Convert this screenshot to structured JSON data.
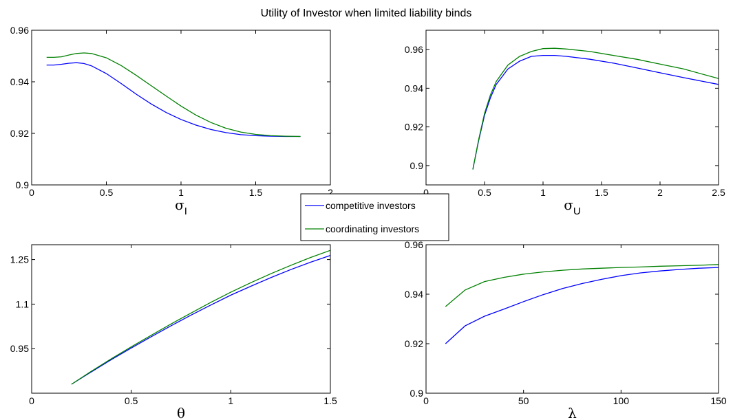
{
  "figure": {
    "title": "Utility of Investor when limited liability binds"
  },
  "legend": {
    "entries": [
      {
        "label": "competitive investors",
        "color": "#0000ff"
      },
      {
        "label": "coordinating investors",
        "color": "#008000"
      }
    ],
    "placement": "center"
  },
  "chart_data": [
    {
      "type": "line",
      "xlabel": "σ",
      "xlabel_sub": "I",
      "xlim": [
        0,
        2
      ],
      "ylim": [
        0.9,
        0.96
      ],
      "xticks": [
        0,
        0.5,
        1,
        1.5,
        2
      ],
      "xtick_labels": [
        "0",
        "0.5",
        "1",
        "1.5",
        "2"
      ],
      "yticks": [
        0.9,
        0.92,
        0.94,
        0.96
      ],
      "ytick_labels": [
        "0.9",
        "0.92",
        "0.94",
        "0.96"
      ],
      "grid": false,
      "series": [
        {
          "color": "#0000ff",
          "x": [
            0.1,
            0.15,
            0.2,
            0.25,
            0.3,
            0.35,
            0.4,
            0.5,
            0.6,
            0.7,
            0.8,
            0.9,
            1.0,
            1.1,
            1.2,
            1.3,
            1.4,
            1.5,
            1.6,
            1.7,
            1.8
          ],
          "y": [
            0.9465,
            0.9465,
            0.9468,
            0.9472,
            0.9474,
            0.9471,
            0.9462,
            0.9432,
            0.9393,
            0.9352,
            0.9314,
            0.9281,
            0.9254,
            0.9232,
            0.9215,
            0.9203,
            0.9195,
            0.9191,
            0.9189,
            0.9188,
            0.9188
          ]
        },
        {
          "color": "#008000",
          "x": [
            0.1,
            0.15,
            0.2,
            0.25,
            0.3,
            0.35,
            0.4,
            0.5,
            0.6,
            0.7,
            0.8,
            0.9,
            1.0,
            1.1,
            1.2,
            1.3,
            1.4,
            1.5,
            1.6,
            1.7,
            1.8
          ],
          "y": [
            0.9495,
            0.9495,
            0.9497,
            0.9504,
            0.951,
            0.9512,
            0.951,
            0.9493,
            0.9463,
            0.9425,
            0.9385,
            0.9345,
            0.9306,
            0.9271,
            0.9242,
            0.922,
            0.9205,
            0.9196,
            0.9191,
            0.9189,
            0.9188
          ]
        }
      ]
    },
    {
      "type": "line",
      "xlabel": "σ",
      "xlabel_sub": "U",
      "xlim": [
        0,
        2.5
      ],
      "ylim": [
        0.89,
        0.97
      ],
      "xticks": [
        0,
        0.5,
        1,
        1.5,
        2,
        2.5
      ],
      "xtick_labels": [
        "0",
        "0.5",
        "1",
        "1.5",
        "2",
        "2.5"
      ],
      "yticks": [
        0.9,
        0.92,
        0.94,
        0.96
      ],
      "ytick_labels": [
        "0.9",
        "0.92",
        "0.94",
        "0.96"
      ],
      "grid": false,
      "series": [
        {
          "color": "#0000ff",
          "x": [
            0.4,
            0.45,
            0.5,
            0.55,
            0.6,
            0.7,
            0.8,
            0.9,
            1.0,
            1.1,
            1.2,
            1.4,
            1.6,
            1.8,
            2.0,
            2.2,
            2.5
          ],
          "y": [
            0.898,
            0.913,
            0.926,
            0.935,
            0.942,
            0.95,
            0.954,
            0.9565,
            0.957,
            0.957,
            0.9565,
            0.955,
            0.953,
            0.9505,
            0.948,
            0.9455,
            0.942
          ]
        },
        {
          "color": "#008000",
          "x": [
            0.4,
            0.45,
            0.5,
            0.55,
            0.6,
            0.7,
            0.8,
            0.9,
            1.0,
            1.1,
            1.2,
            1.4,
            1.6,
            1.8,
            2.0,
            2.2,
            2.5
          ],
          "y": [
            0.898,
            0.9135,
            0.927,
            0.9365,
            0.9435,
            0.952,
            0.9565,
            0.959,
            0.9605,
            0.9607,
            0.9603,
            0.959,
            0.957,
            0.955,
            0.9525,
            0.95,
            0.945
          ]
        }
      ]
    },
    {
      "type": "line",
      "xlabel": "θ",
      "xlabel_sub": "",
      "xlim": [
        0,
        1.5
      ],
      "ylim": [
        0.8,
        1.3
      ],
      "xticks": [
        0,
        0.5,
        1,
        1.5
      ],
      "xtick_labels": [
        "0",
        "0.5",
        "1",
        "1.5"
      ],
      "yticks": [
        0.95,
        1.1,
        1.25
      ],
      "ytick_labels": [
        "0.95",
        "1.1",
        "1.25"
      ],
      "grid": false,
      "series": [
        {
          "color": "#0000ff",
          "x": [
            0.2,
            0.3,
            0.4,
            0.5,
            0.6,
            0.7,
            0.8,
            0.9,
            1.0,
            1.1,
            1.2,
            1.3,
            1.4,
            1.5
          ],
          "y": [
            0.83,
            0.872,
            0.913,
            0.952,
            0.99,
            1.027,
            1.063,
            1.097,
            1.13,
            1.16,
            1.189,
            1.216,
            1.241,
            1.264
          ]
        },
        {
          "color": "#008000",
          "x": [
            0.2,
            0.3,
            0.4,
            0.5,
            0.6,
            0.7,
            0.8,
            0.9,
            1.0,
            1.1,
            1.2,
            1.3,
            1.4,
            1.5
          ],
          "y": [
            0.83,
            0.874,
            0.916,
            0.956,
            0.995,
            1.033,
            1.07,
            1.106,
            1.14,
            1.172,
            1.202,
            1.23,
            1.257,
            1.281
          ]
        }
      ]
    },
    {
      "type": "line",
      "xlabel": "λ",
      "xlabel_sub": "",
      "xlim": [
        0,
        150
      ],
      "ylim": [
        0.9,
        0.96
      ],
      "xticks": [
        0,
        50,
        100,
        150
      ],
      "xtick_labels": [
        "0",
        "50",
        "100",
        "150"
      ],
      "yticks": [
        0.9,
        0.92,
        0.94,
        0.96
      ],
      "ytick_labels": [
        "0.9",
        "0.92",
        "0.94",
        "0.96"
      ],
      "grid": false,
      "series": [
        {
          "color": "#0000ff",
          "x": [
            10,
            20,
            30,
            40,
            50,
            60,
            70,
            80,
            90,
            100,
            110,
            120,
            130,
            140,
            150
          ],
          "y": [
            0.92,
            0.9272,
            0.9311,
            0.934,
            0.937,
            0.9398,
            0.9423,
            0.9443,
            0.946,
            0.9475,
            0.9486,
            0.9494,
            0.95,
            0.9505,
            0.9508
          ]
        },
        {
          "color": "#008000",
          "x": [
            10,
            20,
            30,
            40,
            50,
            60,
            70,
            80,
            90,
            100,
            110,
            120,
            130,
            140,
            150
          ],
          "y": [
            0.935,
            0.9417,
            0.9451,
            0.9468,
            0.9481,
            0.949,
            0.9497,
            0.9502,
            0.9505,
            0.9508,
            0.951,
            0.9513,
            0.9515,
            0.9517,
            0.952
          ]
        }
      ]
    }
  ]
}
